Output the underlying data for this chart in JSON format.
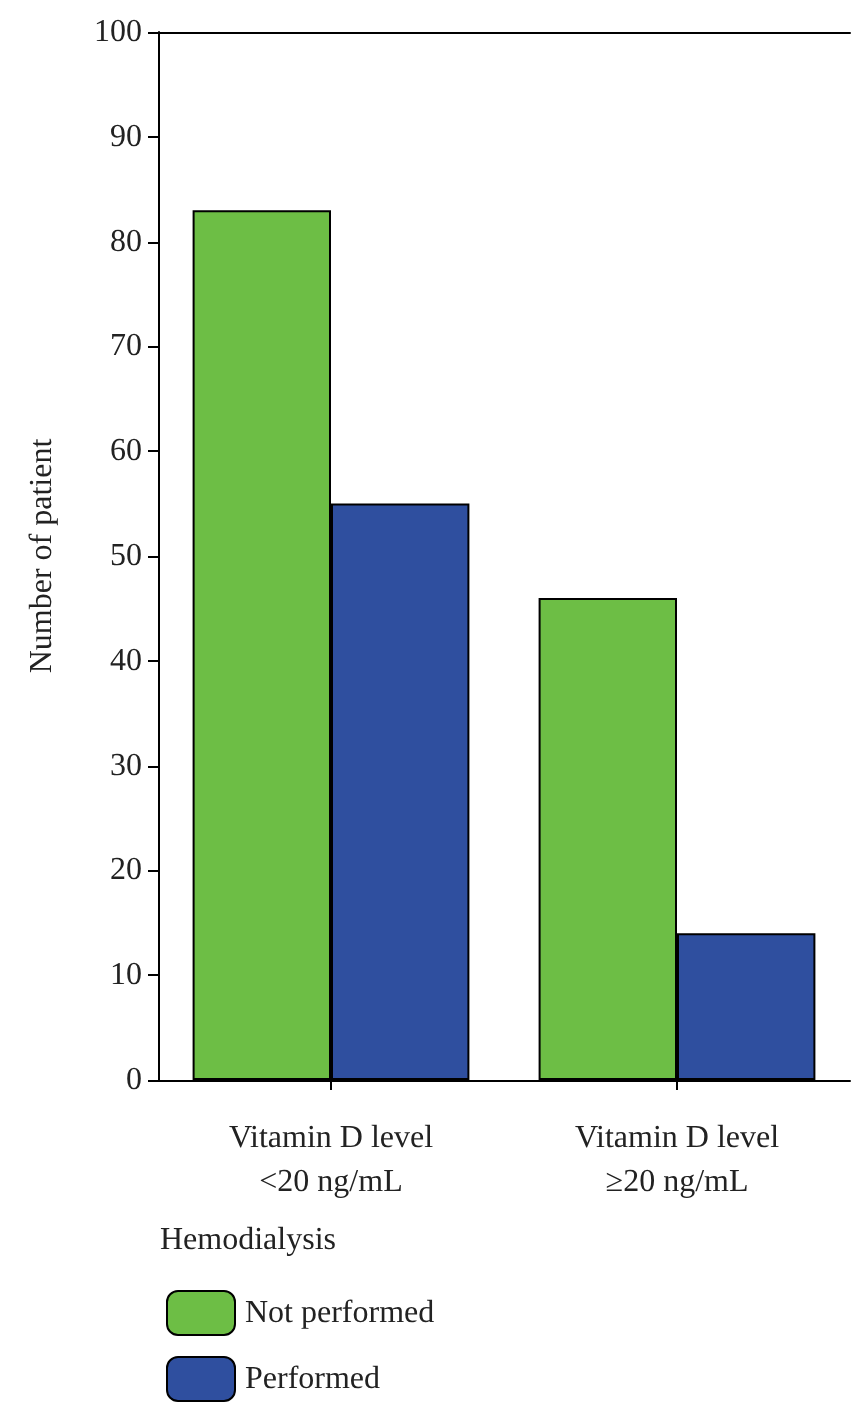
{
  "chart_data": {
    "type": "bar",
    "ylabel": "Number of patient",
    "legend_title": "Hemodialysis",
    "categories": [
      "Vitamin D level\n<20 ng/mL",
      "Vitamin D level\n≥20 ng/mL"
    ],
    "series": [
      {
        "name": "Not performed",
        "color": "#6dbe45",
        "values": [
          83,
          46
        ]
      },
      {
        "name": "Performed",
        "color": "#2f4f9f",
        "values": [
          55,
          14
        ]
      }
    ],
    "ylim": [
      0,
      100
    ],
    "yticks": [
      0,
      10,
      20,
      30,
      40,
      50,
      60,
      70,
      80,
      90,
      100
    ],
    "grid": false,
    "legend": "bottom left"
  }
}
